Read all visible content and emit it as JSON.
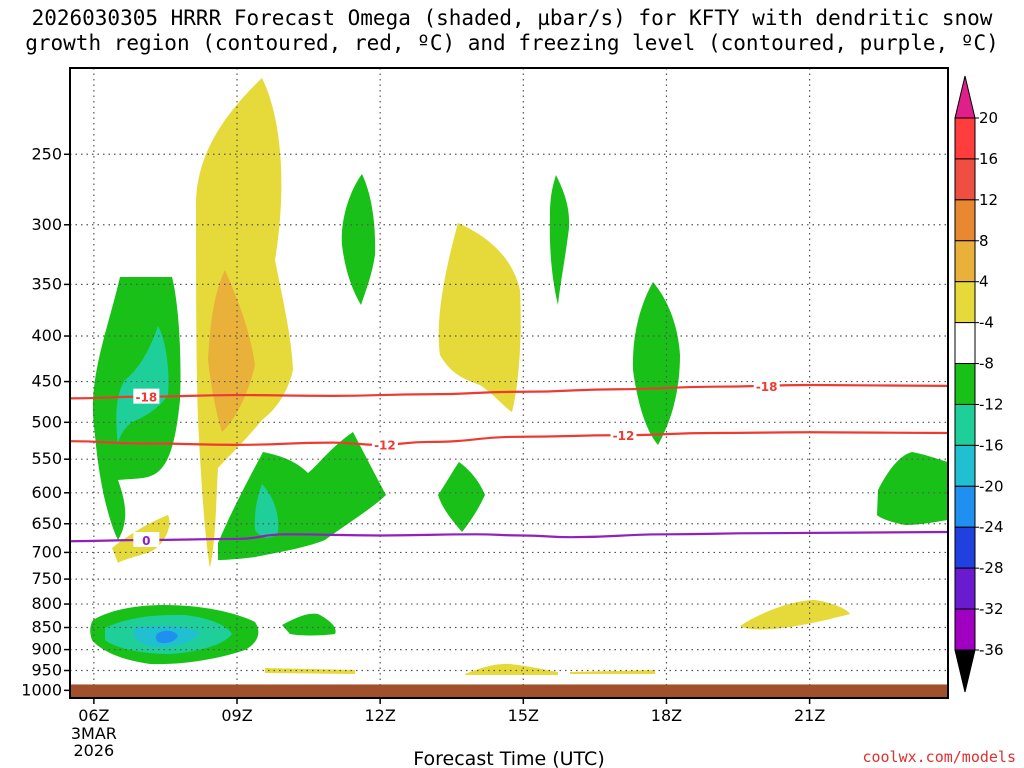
{
  "title_line1": "2026030305 HRRR Forecast Omega (shaded, µbar/s) for KFTY with dendritic snow",
  "title_line2": "growth region (contoured, red, ºC) and freezing level (contoured, purple, ºC)",
  "credit": "coolwx.com/models",
  "chart_data": {
    "type": "contour",
    "xlabel": "Forecast Time (UTC)",
    "x_ticks": [
      {
        "hour": 6,
        "label": "06Z",
        "sub": [
          "3MAR",
          "2026"
        ]
      },
      {
        "hour": 9,
        "label": "09Z"
      },
      {
        "hour": 12,
        "label": "12Z"
      },
      {
        "hour": 15,
        "label": "15Z"
      },
      {
        "hour": 18,
        "label": "18Z"
      },
      {
        "hour": 21,
        "label": "21Z"
      }
    ],
    "xlim": [
      5.5,
      23.9
    ],
    "y_ticks": [
      250,
      300,
      350,
      400,
      450,
      500,
      550,
      600,
      650,
      700,
      750,
      800,
      850,
      900,
      950,
      1000
    ],
    "ylim": [
      200,
      1020
    ],
    "ground_pressure": 990,
    "colorbar": {
      "labels": [
        "20",
        "16",
        "12",
        "8",
        "4",
        "-4",
        "-8",
        "-12",
        "-16",
        "-20",
        "-24",
        "-28",
        "-32",
        "-36"
      ],
      "colors": [
        "#ff3d3d",
        "#ef4f41",
        "#e88830",
        "#e9b03a",
        "#e6da3a",
        "#ffffff",
        "#18c018",
        "#1fcf9a",
        "#20c0d0",
        "#2090f0",
        "#2040e0",
        "#6a1bd0",
        "#a000c0",
        "#a0a0a0"
      ],
      "top_color": "#e0208a",
      "bottom_color": "#000000"
    },
    "contours": [
      {
        "name": "dendritic-top",
        "label": "-18",
        "color": "#ee3b32",
        "points": [
          [
            5.5,
            470
          ],
          [
            7.0,
            468
          ],
          [
            9.0,
            466
          ],
          [
            11.0,
            467
          ],
          [
            13.0,
            465
          ],
          [
            15.0,
            462
          ],
          [
            17.0,
            459
          ],
          [
            19.0,
            456
          ],
          [
            21.0,
            454
          ],
          [
            23.9,
            455
          ]
        ],
        "label_at": [
          7.1,
          20.1
        ]
      },
      {
        "name": "dendritic-bottom",
        "label": "-12",
        "color": "#ee3b32",
        "points": [
          [
            5.5,
            525
          ],
          [
            7.0,
            528
          ],
          [
            9.0,
            530
          ],
          [
            11.0,
            527
          ],
          [
            12.0,
            530
          ],
          [
            13.0,
            526
          ],
          [
            15.0,
            519
          ],
          [
            17.0,
            517
          ],
          [
            19.0,
            514
          ],
          [
            21.0,
            513
          ],
          [
            23.9,
            514
          ]
        ],
        "label_at": [
          12.1,
          17.1
        ]
      },
      {
        "name": "freezing-level",
        "label": "0",
        "color": "#9020c0",
        "points": [
          [
            5.5,
            680
          ],
          [
            7.0,
            678
          ],
          [
            9.0,
            676
          ],
          [
            10.0,
            668
          ],
          [
            12.0,
            670
          ],
          [
            14.0,
            668
          ],
          [
            15.0,
            670
          ],
          [
            16.0,
            673
          ],
          [
            18.0,
            668
          ],
          [
            20.0,
            666
          ],
          [
            23.9,
            664
          ]
        ],
        "label_at": [
          7.1
        ]
      }
    ]
  }
}
